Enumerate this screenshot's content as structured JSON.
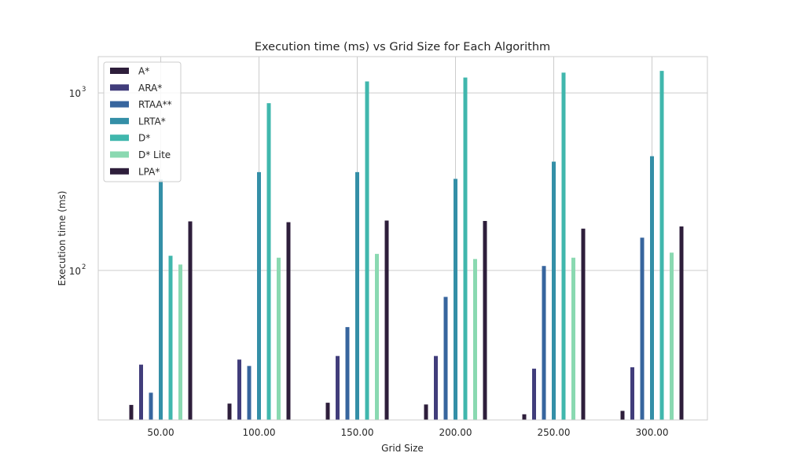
{
  "chart_data": {
    "type": "bar",
    "title": "Execution time (ms) vs Grid Size for Each Algorithm",
    "xlabel": "Grid Size",
    "ylabel": "Execution time (ms)",
    "yscale": "log",
    "ylim": [
      14.4,
      1600
    ],
    "grid": true,
    "legend_position": "top-left",
    "categories": [
      "50.00",
      "100.00",
      "150.00",
      "200.00",
      "250.00",
      "300.00"
    ],
    "y_ticks": [
      {
        "value": 100,
        "base": "10",
        "exp": "2"
      },
      {
        "value": 1000,
        "base": "10",
        "exp": "3"
      }
    ],
    "series": [
      {
        "name": "A*",
        "color": "#2e1e3b",
        "values": [
          17.5,
          17.8,
          18.0,
          17.6,
          15.5,
          16.2
        ]
      },
      {
        "name": "ARA*",
        "color": "#413d7b",
        "values": [
          29.5,
          31.5,
          33.0,
          33.0,
          28.0,
          28.5
        ]
      },
      {
        "name": "RTAA**",
        "color": "#37659e",
        "values": [
          20.5,
          29.0,
          48.0,
          71.0,
          106.0,
          153.0
        ]
      },
      {
        "name": "LRTA*",
        "color": "#348fa7",
        "values": [
          325,
          358,
          358,
          328,
          410,
          440
        ]
      },
      {
        "name": "D*",
        "color": "#40b7ad",
        "values": [
          121,
          875,
          1160,
          1220,
          1300,
          1330
        ]
      },
      {
        "name": "D* Lite",
        "color": "#8ad9b1",
        "values": [
          108,
          118,
          124,
          116,
          118,
          126
        ]
      },
      {
        "name": "LPA*",
        "color": "#2e1e3b",
        "values": [
          189,
          187,
          191,
          190,
          172,
          177
        ]
      }
    ]
  }
}
